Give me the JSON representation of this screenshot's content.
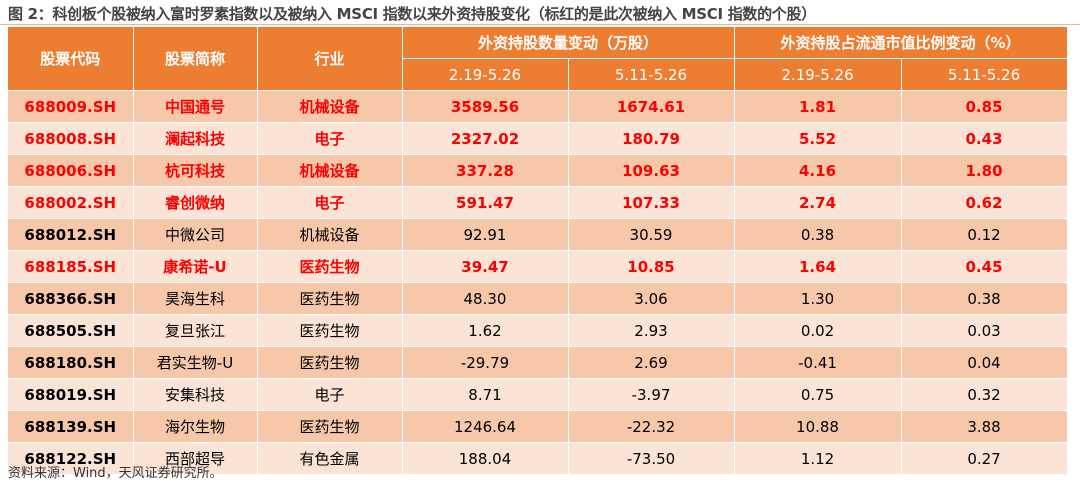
{
  "title": "图 2：科创板个股被纳入富时罗素指数以及被纳入 MSCI 指数以来外资持股变化（标红的是此次被纳入 MSCI 指数的个股）",
  "headers": {
    "code": "股票代码",
    "name": "股票简称",
    "industry": "行业",
    "group1": "外资持股数量变动（万股）",
    "group2": "外资持股占流通市值比例变动（%）",
    "p1": "2.19-5.26",
    "p2": "5.11-5.26",
    "p3": "2.19-5.26",
    "p4": "5.11-5.26"
  },
  "rows": [
    {
      "code": "688009.SH",
      "name": "中国通号",
      "industry": "机械设备",
      "a": "3589.56",
      "b": "1674.61",
      "c": "1.81",
      "d": "0.85",
      "red": true
    },
    {
      "code": "688008.SH",
      "name": "澜起科技",
      "industry": "电子",
      "a": "2327.02",
      "b": "180.79",
      "c": "5.52",
      "d": "0.43",
      "red": true
    },
    {
      "code": "688006.SH",
      "name": "杭可科技",
      "industry": "机械设备",
      "a": "337.28",
      "b": "109.63",
      "c": "4.16",
      "d": "1.80",
      "red": true
    },
    {
      "code": "688002.SH",
      "name": "睿创微纳",
      "industry": "电子",
      "a": "591.47",
      "b": "107.33",
      "c": "2.74",
      "d": "0.62",
      "red": true
    },
    {
      "code": "688012.SH",
      "name": "中微公司",
      "industry": "机械设备",
      "a": "92.91",
      "b": "30.59",
      "c": "0.38",
      "d": "0.12",
      "red": false
    },
    {
      "code": "688185.SH",
      "name": "康希诺-U",
      "industry": "医药生物",
      "a": "39.47",
      "b": "10.85",
      "c": "1.64",
      "d": "0.45",
      "red": true
    },
    {
      "code": "688366.SH",
      "name": "昊海生科",
      "industry": "医药生物",
      "a": "48.30",
      "b": "3.06",
      "c": "1.30",
      "d": "0.38",
      "red": false
    },
    {
      "code": "688505.SH",
      "name": "复旦张江",
      "industry": "医药生物",
      "a": "1.62",
      "b": "2.93",
      "c": "0.02",
      "d": "0.03",
      "red": false
    },
    {
      "code": "688180.SH",
      "name": "君实生物-U",
      "industry": "医药生物",
      "a": "-29.79",
      "b": "2.69",
      "c": "-0.41",
      "d": "0.04",
      "red": false
    },
    {
      "code": "688019.SH",
      "name": "安集科技",
      "industry": "电子",
      "a": "8.71",
      "b": "-3.97",
      "c": "0.75",
      "d": "0.32",
      "red": false
    },
    {
      "code": "688139.SH",
      "name": "海尔生物",
      "industry": "医药生物",
      "a": "1246.64",
      "b": "-22.32",
      "c": "10.88",
      "d": "3.88",
      "red": false
    },
    {
      "code": "688122.SH",
      "name": "西部超导",
      "industry": "有色金属",
      "a": "188.04",
      "b": "-73.50",
      "c": "1.12",
      "d": "0.27",
      "red": false
    }
  ],
  "source": "资料来源：Wind，天风证券研究所。"
}
